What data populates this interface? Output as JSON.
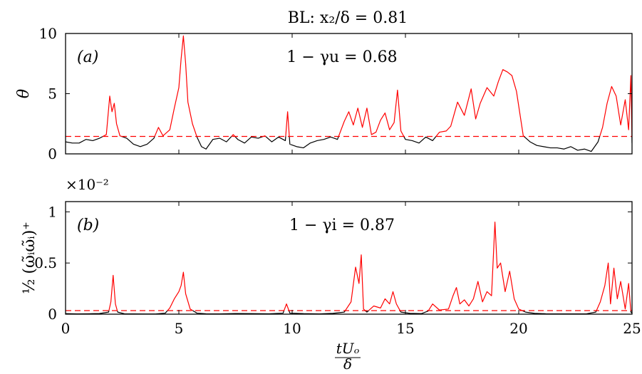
{
  "figure": {
    "title": "BL: x₂/δ = 0.81",
    "x_label_num": "tUₒ",
    "x_label_den": "δ",
    "x_ticks": [
      "0",
      "5",
      "10",
      "15",
      "20",
      "25"
    ]
  },
  "colors": {
    "signal_below": "#000000",
    "signal_above": "#ff0000",
    "threshold_line": "#ff0000"
  },
  "chart_data": [
    {
      "type": "line",
      "panel": "(a)",
      "title": "",
      "xlabel": "tUₒ/δ",
      "ylabel": "θ",
      "annotation": "1 − γu = 0.68",
      "xlim": [
        0,
        25
      ],
      "ylim": [
        0,
        10
      ],
      "x_ticks": [
        0,
        5,
        10,
        15,
        20,
        25
      ],
      "y_ticks": [
        0,
        5,
        10
      ],
      "y_tick_labels": [
        "0",
        "5",
        "10"
      ],
      "threshold": 1.45,
      "grid": false,
      "series": [
        {
          "x": [
            0,
            0.3,
            0.6,
            0.9,
            1.2,
            1.5,
            1.8,
            1.95,
            2.05,
            2.15,
            2.25,
            2.4,
            2.7,
            3.0,
            3.3,
            3.6,
            3.9,
            4.1,
            4.3,
            4.6,
            4.8,
            5.0,
            5.1,
            5.2,
            5.3,
            5.4,
            5.6,
            5.8,
            6.0,
            6.2,
            6.5,
            6.8,
            7.1,
            7.4,
            7.6,
            7.9,
            8.2,
            8.5,
            8.8,
            9.1,
            9.4,
            9.7,
            9.8,
            9.9,
            10.2,
            10.5,
            10.8,
            11.1,
            11.4,
            11.7,
            12.0,
            12.3,
            12.5,
            12.7,
            12.9,
            13.1,
            13.3,
            13.5,
            13.7,
            13.9,
            14.1,
            14.3,
            14.5,
            14.65,
            14.8,
            15.0,
            15.3,
            15.6,
            15.9,
            16.2,
            16.5,
            16.8,
            17.0,
            17.3,
            17.6,
            17.9,
            18.1,
            18.3,
            18.6,
            18.9,
            19.1,
            19.3,
            19.5,
            19.7,
            19.9,
            20.2,
            20.5,
            20.8,
            21.1,
            21.4,
            21.7,
            22.0,
            22.3,
            22.6,
            22.9,
            23.2,
            23.5,
            23.7,
            23.9,
            24.1,
            24.3,
            24.5,
            24.7,
            24.85,
            24.95,
            25.0
          ],
          "values": [
            1.0,
            0.9,
            0.9,
            1.2,
            1.1,
            1.3,
            1.6,
            4.8,
            3.5,
            4.2,
            2.5,
            1.5,
            1.3,
            0.8,
            0.6,
            0.8,
            1.3,
            2.2,
            1.5,
            2.0,
            3.8,
            5.5,
            7.9,
            9.8,
            7.5,
            4.3,
            2.5,
            1.4,
            0.6,
            0.4,
            1.2,
            1.3,
            1.0,
            1.6,
            1.2,
            0.9,
            1.4,
            1.3,
            1.5,
            1.0,
            1.4,
            1.1,
            3.5,
            0.8,
            0.6,
            0.5,
            0.9,
            1.1,
            1.2,
            1.4,
            1.2,
            2.7,
            3.5,
            2.4,
            3.8,
            2.2,
            3.8,
            1.6,
            1.8,
            2.8,
            3.4,
            2.0,
            2.6,
            5.3,
            1.9,
            1.2,
            1.1,
            0.9,
            1.4,
            1.1,
            1.8,
            1.9,
            2.3,
            4.3,
            3.2,
            5.4,
            2.9,
            4.2,
            5.5,
            4.8,
            6.0,
            7.0,
            6.8,
            6.5,
            5.2,
            1.5,
            1.0,
            0.7,
            0.6,
            0.5,
            0.5,
            0.4,
            0.6,
            0.3,
            0.4,
            0.2,
            1.0,
            2.2,
            4.2,
            5.6,
            4.8,
            2.4,
            4.5,
            2.0,
            6.5,
            0.9
          ]
        }
      ]
    },
    {
      "type": "line",
      "panel": "(b)",
      "title": "",
      "xlabel": "tUₒ/δ",
      "ylabel": "½ (ω̃ᵢω̃ᵢ)⁺",
      "y_multiplier": "×10⁻²",
      "annotation": "1 − γi = 0.87",
      "xlim": [
        0,
        25
      ],
      "ylim": [
        0,
        1.1
      ],
      "x_ticks": [
        0,
        5,
        10,
        15,
        20,
        25
      ],
      "y_ticks": [
        0,
        0.5,
        1
      ],
      "y_tick_labels": [
        "0",
        "0.5",
        "1"
      ],
      "threshold": 0.035,
      "grid": false,
      "series": [
        {
          "x": [
            0,
            0.5,
            1.0,
            1.5,
            1.9,
            2.0,
            2.1,
            2.2,
            2.3,
            2.6,
            3.0,
            3.5,
            4.0,
            4.4,
            4.6,
            4.8,
            5.0,
            5.1,
            5.2,
            5.3,
            5.5,
            5.8,
            6.2,
            6.8,
            7.5,
            8.2,
            9.0,
            9.6,
            9.75,
            9.9,
            10.5,
            11.2,
            11.8,
            12.3,
            12.6,
            12.8,
            12.95,
            13.05,
            13.15,
            13.3,
            13.6,
            13.9,
            14.1,
            14.3,
            14.45,
            14.6,
            14.8,
            15.2,
            15.7,
            16.0,
            16.2,
            16.5,
            16.9,
            17.1,
            17.25,
            17.4,
            17.6,
            17.8,
            18.0,
            18.2,
            18.4,
            18.6,
            18.8,
            18.95,
            19.05,
            19.2,
            19.4,
            19.6,
            19.8,
            20.0,
            20.3,
            20.7,
            21.2,
            21.8,
            22.4,
            23.0,
            23.4,
            23.6,
            23.8,
            23.95,
            24.05,
            24.2,
            24.35,
            24.5,
            24.7,
            24.85,
            24.95,
            25.0
          ],
          "values": [
            0.005,
            0.003,
            0.004,
            0.006,
            0.02,
            0.12,
            0.38,
            0.1,
            0.02,
            0.004,
            0.003,
            0.002,
            0.003,
            0.01,
            0.06,
            0.15,
            0.22,
            0.28,
            0.41,
            0.2,
            0.05,
            0.01,
            0.004,
            0.003,
            0.006,
            0.005,
            0.004,
            0.01,
            0.1,
            0.01,
            0.005,
            0.003,
            0.008,
            0.02,
            0.12,
            0.46,
            0.3,
            0.58,
            0.05,
            0.02,
            0.08,
            0.06,
            0.15,
            0.1,
            0.22,
            0.1,
            0.02,
            0.008,
            0.005,
            0.03,
            0.1,
            0.04,
            0.05,
            0.18,
            0.26,
            0.1,
            0.14,
            0.08,
            0.15,
            0.32,
            0.12,
            0.22,
            0.18,
            0.9,
            0.45,
            0.5,
            0.22,
            0.42,
            0.15,
            0.05,
            0.02,
            0.008,
            0.004,
            0.003,
            0.003,
            0.004,
            0.02,
            0.12,
            0.28,
            0.5,
            0.1,
            0.45,
            0.15,
            0.32,
            0.05,
            0.3,
            0.02,
            0.01
          ]
        }
      ]
    }
  ]
}
